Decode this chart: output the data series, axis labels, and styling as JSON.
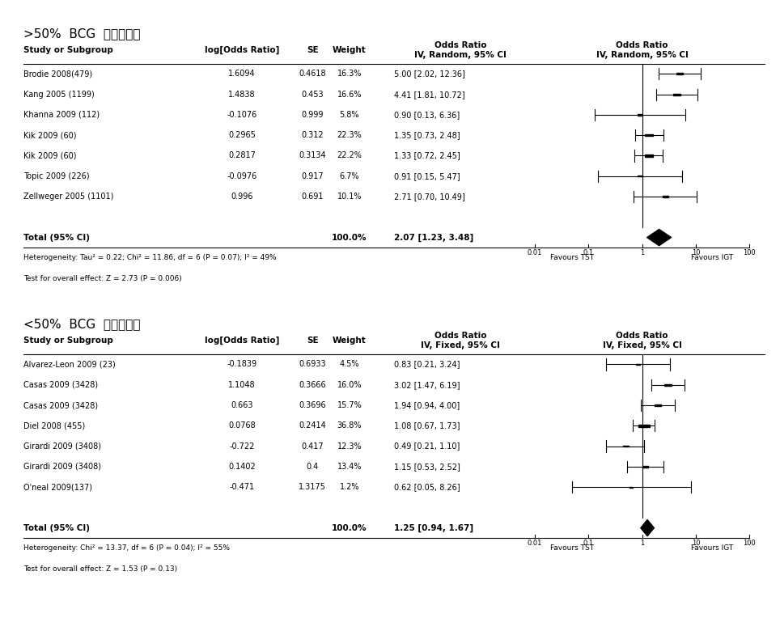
{
  "panel1": {
    "title": ">50%  BCG  예방접종율",
    "method": "IV, Random, 95% CI",
    "studies": [
      {
        "name": "Brodie 2008(479)",
        "log_or": 1.6094,
        "se": 0.4618,
        "weight": "16.3%",
        "or": 5.0,
        "ci_lo": 2.02,
        "ci_hi": 12.36
      },
      {
        "name": "Kang 2005 (1199)",
        "log_or": 1.4838,
        "se": 0.453,
        "weight": "16.6%",
        "or": 4.41,
        "ci_lo": 1.81,
        "ci_hi": 10.72
      },
      {
        "name": "Khanna 2009 (112)",
        "log_or": -0.1076,
        "se": 0.999,
        "weight": "5.8%",
        "or": 0.9,
        "ci_lo": 0.13,
        "ci_hi": 6.36
      },
      {
        "name": "Kik 2009 (60)",
        "log_or": 0.2965,
        "se": 0.312,
        "weight": "22.3%",
        "or": 1.35,
        "ci_lo": 0.73,
        "ci_hi": 2.48
      },
      {
        "name": "Kik 2009 (60)",
        "log_or": 0.2817,
        "se": 0.3134,
        "weight": "22.2%",
        "or": 1.33,
        "ci_lo": 0.72,
        "ci_hi": 2.45
      },
      {
        "name": "Topic 2009 (226)",
        "log_or": -0.0976,
        "se": 0.917,
        "weight": "6.7%",
        "or": 0.91,
        "ci_lo": 0.15,
        "ci_hi": 5.47
      },
      {
        "name": "Zellweger 2005 (1101)",
        "log_or": 0.996,
        "se": 0.691,
        "weight": "10.1%",
        "or": 2.71,
        "ci_lo": 0.7,
        "ci_hi": 10.49
      }
    ],
    "total": {
      "or": 2.07,
      "ci_lo": 1.23,
      "ci_hi": 3.48
    },
    "heterogeneity": "Heterogeneity: Tau² = 0.22; Chi² = 11.86, df = 6 (P = 0.07); I² = 49%",
    "overall_effect": "Test for overall effect: Z = 2.73 (P = 0.006)"
  },
  "panel2": {
    "title": "<50%  BCG  예방접종율",
    "method": "IV, Fixed, 95% CI",
    "studies": [
      {
        "name": "Alvarez-Leon 2009 (23)",
        "log_or": -0.1839,
        "se": 0.6933,
        "weight": "4.5%",
        "or": 0.83,
        "ci_lo": 0.21,
        "ci_hi": 3.24
      },
      {
        "name": "Casas 2009 (3428)",
        "log_or": 1.1048,
        "se": 0.3666,
        "weight": "16.0%",
        "or": 3.02,
        "ci_lo": 1.47,
        "ci_hi": 6.19
      },
      {
        "name": "Casas 2009 (3428)",
        "log_or": 0.663,
        "se": 0.3696,
        "weight": "15.7%",
        "or": 1.94,
        "ci_lo": 0.94,
        "ci_hi": 4.0
      },
      {
        "name": "Diel 2008 (455)",
        "log_or": 0.0768,
        "se": 0.2414,
        "weight": "36.8%",
        "or": 1.08,
        "ci_lo": 0.67,
        "ci_hi": 1.73
      },
      {
        "name": "Girardi 2009 (3408)",
        "log_or": -0.722,
        "se": 0.417,
        "weight": "12.3%",
        "or": 0.49,
        "ci_lo": 0.21,
        "ci_hi": 1.1
      },
      {
        "name": "Girardi 2009 (3408)",
        "log_or": 0.1402,
        "se": 0.4,
        "weight": "13.4%",
        "or": 1.15,
        "ci_lo": 0.53,
        "ci_hi": 2.52
      },
      {
        "name": "O'neal 2009(137)",
        "log_or": -0.471,
        "se": 1.3175,
        "weight": "1.2%",
        "or": 0.62,
        "ci_lo": 0.05,
        "ci_hi": 8.26
      }
    ],
    "total": {
      "or": 1.25,
      "ci_lo": 0.94,
      "ci_hi": 1.67
    },
    "heterogeneity": "Heterogeneity: Chi² = 13.37, df = 6 (P = 0.04); I² = 55%",
    "overall_effect": "Test for overall effect: Z = 1.53 (P = 0.13)"
  },
  "axis_ticks": [
    0.01,
    0.1,
    1,
    10,
    100
  ],
  "axis_tick_labels": [
    "0.01",
    "0.1",
    "1",
    "10",
    "100"
  ],
  "axis_label_left": "Favours TST",
  "axis_label_right": "Favours IGT",
  "bg_color": "#ffffff"
}
